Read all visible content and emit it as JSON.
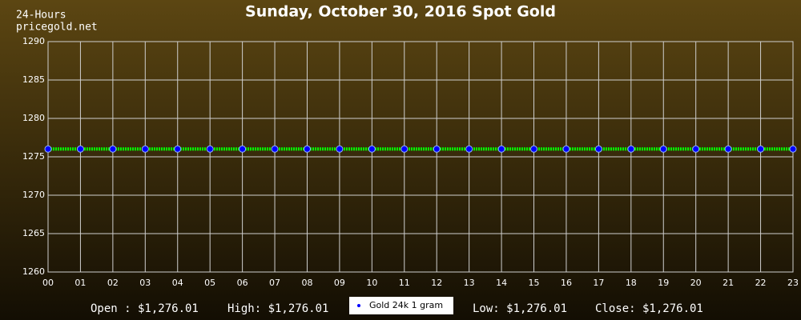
{
  "chart_data": {
    "type": "line",
    "title": "Sunday, October 30, 2016 Spot Gold",
    "subtitle_lines": [
      "24-Hours",
      "pricegold.net"
    ],
    "categories": [
      "00",
      "01",
      "02",
      "03",
      "04",
      "05",
      "06",
      "07",
      "08",
      "09",
      "10",
      "11",
      "12",
      "13",
      "14",
      "15",
      "16",
      "17",
      "18",
      "19",
      "20",
      "21",
      "22",
      "23"
    ],
    "series": [
      {
        "name": "Gold 24k 1 gram",
        "color": "#00ff00",
        "marker_color": "#0000ff",
        "values": [
          1276.01,
          1276.01,
          1276.01,
          1276.01,
          1276.01,
          1276.01,
          1276.01,
          1276.01,
          1276.01,
          1276.01,
          1276.01,
          1276.01,
          1276.01,
          1276.01,
          1276.01,
          1276.01,
          1276.01,
          1276.01,
          1276.01,
          1276.01,
          1276.01,
          1276.01,
          1276.01,
          1276.01
        ]
      }
    ],
    "ylim": [
      1260,
      1290
    ],
    "yticks": [
      1260,
      1265,
      1270,
      1275,
      1280,
      1285,
      1290
    ],
    "grid": true,
    "stats": [
      "Open : $1,276.01",
      "High: $1,276.01",
      "Low: $1,276.01",
      "Close: $1,276.01"
    ]
  }
}
